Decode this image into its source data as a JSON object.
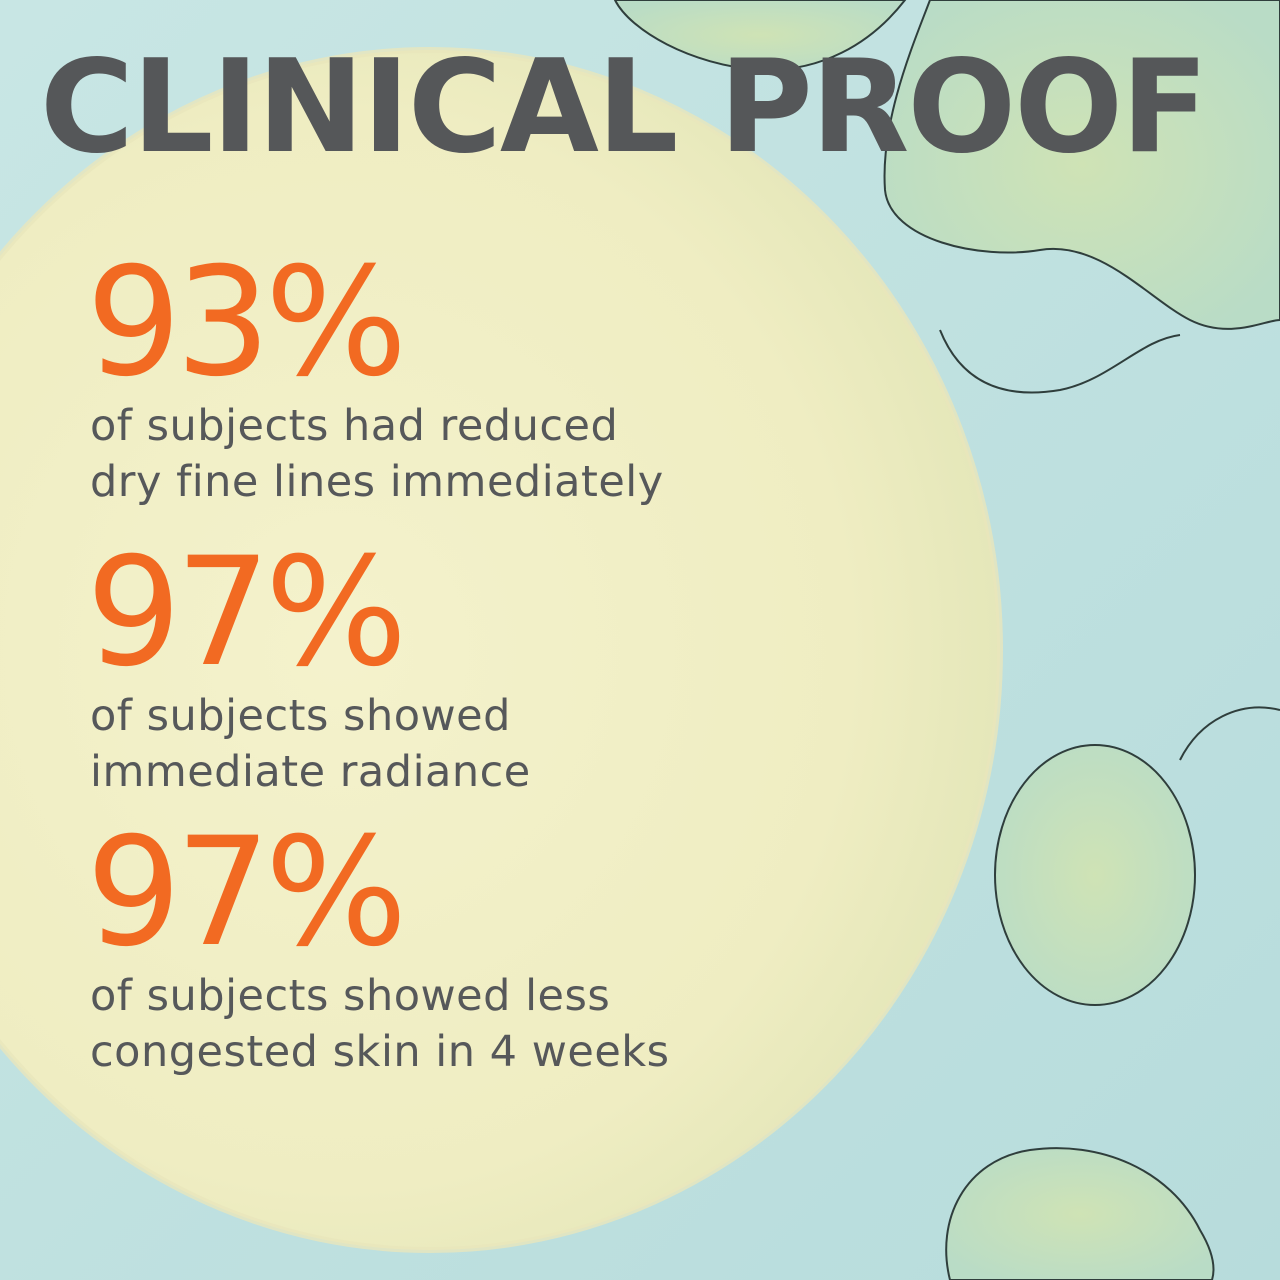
{
  "title": "CLINICAL PROOF",
  "colors": {
    "background": "#bfe0e0",
    "pad": "#f2f0c6",
    "title": "#555759",
    "accent": "#f26a22",
    "body_text": "#56585a",
    "gel_outline": "#2f3e3c"
  },
  "stats": [
    {
      "value": "93%",
      "line1": "of subjects had reduced",
      "line2": "dry fine lines immediately"
    },
    {
      "value": "97%",
      "line1": "of subjects showed",
      "line2": "immediate radiance"
    },
    {
      "value": "97%",
      "line1": "of subjects showed less",
      "line2": "congested skin in 4 weeks"
    }
  ]
}
